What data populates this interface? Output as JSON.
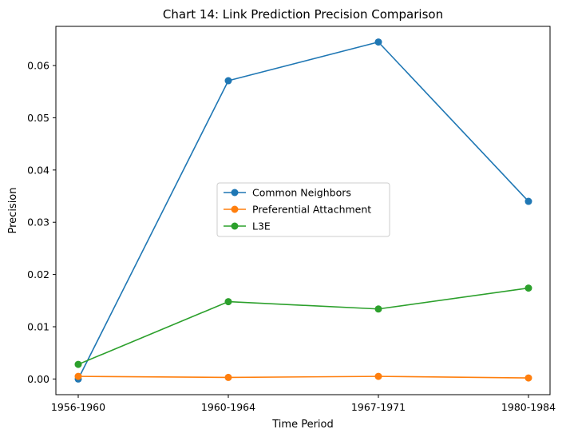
{
  "chart_data": {
    "type": "line",
    "title": "Chart 14: Link Prediction Precision Comparison",
    "xlabel": "Time Period",
    "ylabel": "Precision",
    "categories": [
      "1956-1960",
      "1960-1964",
      "1967-1971",
      "1980-1984"
    ],
    "ylim": [
      -0.003,
      0.0675
    ],
    "yticks": [
      0.0,
      0.01,
      0.02,
      0.03,
      0.04,
      0.05,
      0.06
    ],
    "ytick_labels": [
      "0.00",
      "0.01",
      "0.02",
      "0.03",
      "0.04",
      "0.05",
      "0.06"
    ],
    "grid": false,
    "legend_position": "center",
    "series": [
      {
        "name": "Common Neighbors",
        "color": "#1f77b4",
        "marker": "circle",
        "values": [
          0.0,
          0.0571,
          0.0645,
          0.034
        ]
      },
      {
        "name": "Preferential Attachment",
        "color": "#ff7f0e",
        "marker": "circle",
        "values": [
          0.0005,
          0.0003,
          0.0005,
          0.0002
        ]
      },
      {
        "name": "L3E",
        "color": "#2ca02c",
        "marker": "circle",
        "values": [
          0.0028,
          0.0148,
          0.0134,
          0.0174
        ]
      }
    ]
  }
}
